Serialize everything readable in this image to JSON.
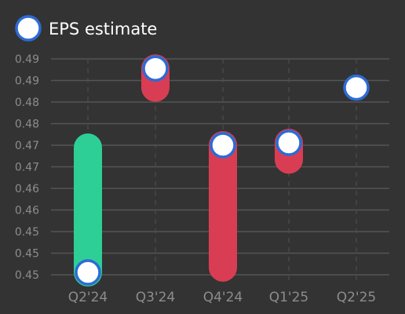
{
  "chart_data": {
    "type": "bar",
    "legend": {
      "label": "EPS estimate",
      "placement": "top-left"
    },
    "categories": [
      "Q2'24",
      "Q3'24",
      "Q4'24",
      "Q1'25",
      "Q2'25"
    ],
    "estimate": [
      0.45,
      0.4925,
      0.4765,
      0.477,
      0.4885
    ],
    "actual": [
      0.476,
      0.4885,
      0.451,
      0.4735,
      null
    ],
    "y_ticks": [
      "0.49",
      "0.49",
      "0.48",
      "0.48",
      "0.47",
      "0.47",
      "0.46",
      "0.46",
      "0.45",
      "0.45",
      "0.45"
    ],
    "ylim": [
      0.4495,
      0.4945
    ],
    "grid": true,
    "colors": {
      "beat": "#2ecf96",
      "miss": "#d93d54",
      "marker_fill": "#ffffff",
      "marker_stroke": "#2d6bd4",
      "grid": "#555555",
      "vgrid": "#4d4d4d"
    }
  }
}
